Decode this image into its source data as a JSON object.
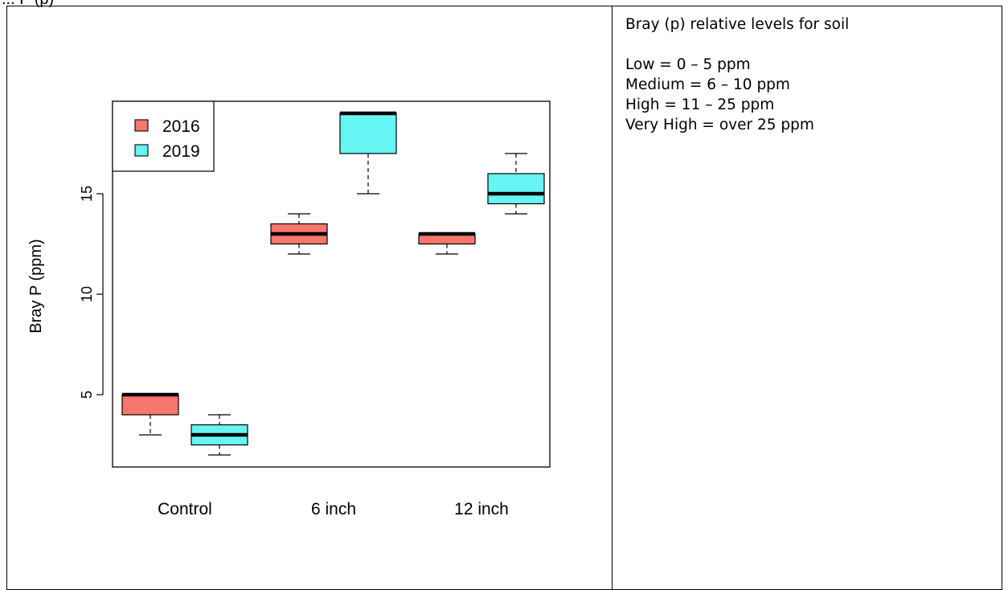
{
  "document": {
    "heading_fragment": "... P (p)"
  },
  "info_box": {
    "title": "Bray (p) relative levels for soil",
    "levels": [
      "Low = 0 – 5 ppm",
      "Medium = 6 – 10 ppm",
      "High = 11 – 25 ppm",
      "Very High = over 25 ppm"
    ]
  },
  "colors": {
    "2016": "#F8766D",
    "2019": "#66F5F2"
  },
  "chart_data": {
    "type": "boxplot",
    "title": "",
    "xlabel": "",
    "ylabel": "Bray P (ppm)",
    "ylim": [
      1.4,
      19.6
    ],
    "yticks": [
      5,
      10,
      15
    ],
    "grid": false,
    "legend_position": "top-left",
    "categories": [
      "Control",
      "6 inch",
      "12 inch"
    ],
    "series": [
      {
        "name": "2016",
        "boxes": [
          {
            "min": 3,
            "q1": 4,
            "median": 5,
            "q3": 5,
            "max": 5
          },
          {
            "min": 12,
            "q1": 12.5,
            "median": 13,
            "q3": 13.5,
            "max": 14
          },
          {
            "min": 12,
            "q1": 12.5,
            "median": 13,
            "q3": 13,
            "max": 13
          }
        ]
      },
      {
        "name": "2019",
        "boxes": [
          {
            "min": 2,
            "q1": 2.5,
            "median": 3,
            "q3": 3.5,
            "max": 4
          },
          {
            "min": 15,
            "q1": 17,
            "median": 19,
            "q3": 19,
            "max": 19
          },
          {
            "min": 14,
            "q1": 14.5,
            "median": 15,
            "q3": 16,
            "max": 17
          }
        ]
      }
    ]
  }
}
